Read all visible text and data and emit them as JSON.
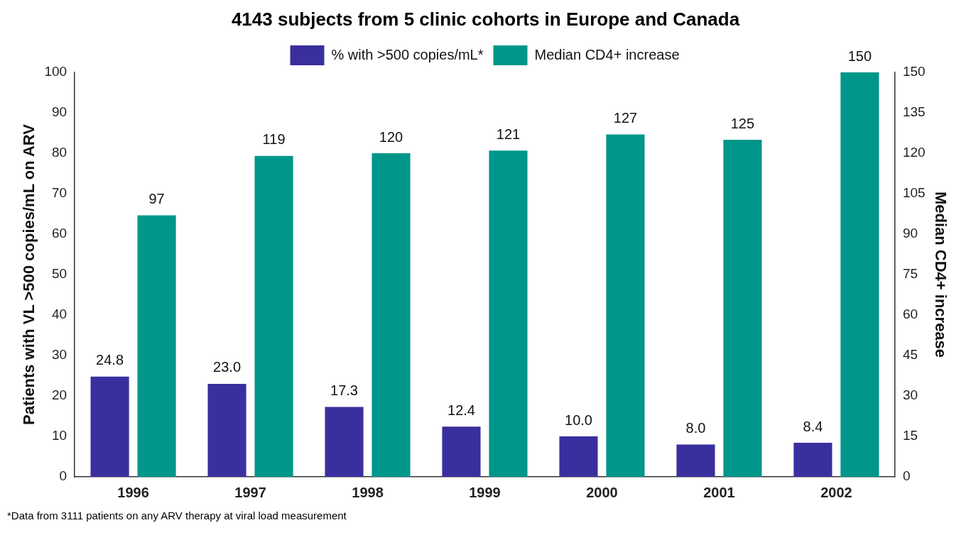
{
  "chart_data": {
    "type": "bar",
    "title": "4143 subjects from 5 clinic cohorts in Europe and Canada",
    "categories": [
      "1996",
      "1997",
      "1998",
      "1999",
      "2000",
      "2001",
      "2002"
    ],
    "ylabel": "Patients with VL >500 copies/mL on ARV",
    "y2label": "Median CD4+ increase",
    "ylim": [
      0,
      100
    ],
    "yticks": [
      0,
      10,
      20,
      30,
      40,
      50,
      60,
      70,
      80,
      90,
      100
    ],
    "y2lim": [
      0,
      150
    ],
    "y2ticks": [
      0,
      15,
      30,
      45,
      60,
      75,
      90,
      105,
      120,
      135,
      150
    ],
    "series": [
      {
        "name": "% with >500 copies/mL*",
        "color": "#3a2f9e",
        "values": [
          24.8,
          23.0,
          17.3,
          12.4,
          10.0,
          8.0,
          8.4
        ],
        "value_labels": [
          "24.8",
          "23.0",
          "17.3",
          "12.4",
          "10.0",
          "8.0",
          "8.4"
        ]
      },
      {
        "name": "Median CD4+ increase",
        "color": "#00968a",
        "axis": "y2",
        "values": [
          97,
          119,
          120,
          121,
          127,
          125,
          150
        ],
        "value_labels": [
          "97",
          "119",
          "120",
          "121",
          "127",
          "125",
          "150"
        ]
      }
    ],
    "legend": "top",
    "grid": false,
    "annotations": [
      "*Data from 3111 patients on any ARV therapy at viral load measurement"
    ]
  }
}
